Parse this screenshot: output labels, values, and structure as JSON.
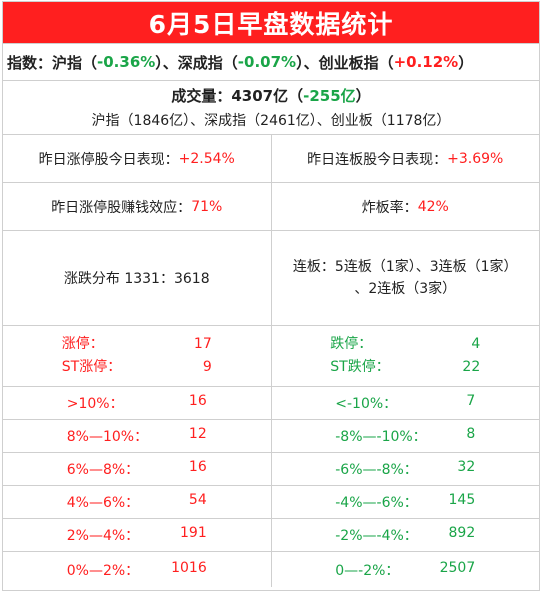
{
  "title": "6月5日早盘数据统计",
  "indices": {
    "prefix": "指数：沪指（",
    "sh_change": "-0.36%",
    "sep1": "）、深成指（",
    "sz_change": "-0.07%",
    "sep2": "）、创业板指（",
    "cy_change": "+0.12%",
    "suffix": "）"
  },
  "volume": {
    "label": "成交量：4307亿（",
    "change": "-255亿",
    "close": "）",
    "breakdown": "沪指（1846亿）、深成指（2461亿）、创业板（1178亿）"
  },
  "performance": {
    "zt_label": "昨日涨停股今日表现：",
    "zt_value": "+2.54%",
    "lb_label": "昨日连板股今日表现：",
    "lb_value": "+3.69%"
  },
  "money": {
    "effect_label": "昨日涨停股赚钱效应：",
    "effect_value": "71%",
    "break_label": "炸板率：",
    "break_value": "42%"
  },
  "distribution": {
    "updown": "涨跌分布 1331：3618",
    "lianban_line1": "连板：5连板（1家）、3连板（1家）",
    "lianban_line2": "、2连板（3家）"
  },
  "limits": {
    "up_label": "涨停：",
    "up_value": "17",
    "st_up_label": "ST涨停：",
    "st_up_value": "9",
    "down_label": "跌停：",
    "down_value": "4",
    "st_down_label": "ST跌停：",
    "st_down_value": "22"
  },
  "bands": [
    {
      "up_label": ">10%：",
      "up_value": "16",
      "down_label": "<-10%：",
      "down_value": "7"
    },
    {
      "up_label": "8%—10%：",
      "up_value": "12",
      "down_label": "-8%—-10%：",
      "down_value": "8"
    },
    {
      "up_label": "6%—8%：",
      "up_value": "16",
      "down_label": "-6%—-8%：",
      "down_value": "32"
    },
    {
      "up_label": "4%—6%：",
      "up_value": "54",
      "down_label": "-4%—-6%：",
      "down_value": "145"
    },
    {
      "up_label": "2%—4%：",
      "up_value": "191",
      "down_label": "-2%—-4%：",
      "down_value": "892"
    },
    {
      "up_label": "0%—2%：",
      "up_value": "1016",
      "down_label": "0—-2%：",
      "down_value": "2507"
    }
  ],
  "colors": {
    "title_bg": "#ff1f1f",
    "up": "#ff1f1f",
    "down": "#1aa548"
  }
}
